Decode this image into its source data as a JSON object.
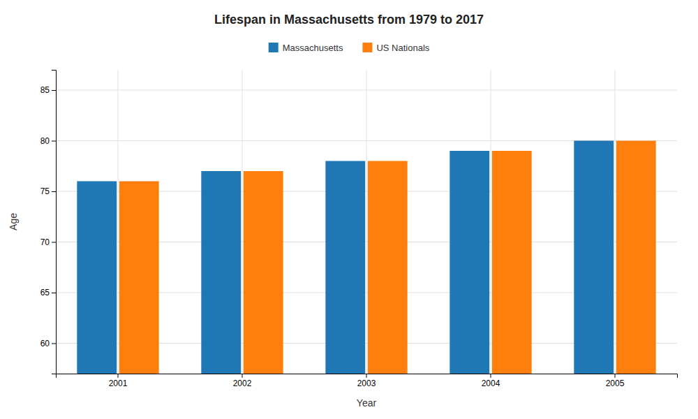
{
  "chart_data": {
    "type": "bar",
    "title": "Lifespan in Massachusetts from 1979 to 2017",
    "xlabel": "Year",
    "ylabel": "Age",
    "categories": [
      "2001",
      "2002",
      "2003",
      "2004",
      "2005"
    ],
    "series": [
      {
        "name": "Massachusetts",
        "values": [
          76,
          77,
          78,
          79,
          80
        ]
      },
      {
        "name": "US Nationals",
        "values": [
          76,
          77,
          78,
          79,
          80
        ]
      }
    ],
    "ylim": [
      57,
      87
    ],
    "yticks": [
      60,
      65,
      70,
      75,
      80,
      85
    ],
    "grid": true,
    "legend": "top"
  }
}
